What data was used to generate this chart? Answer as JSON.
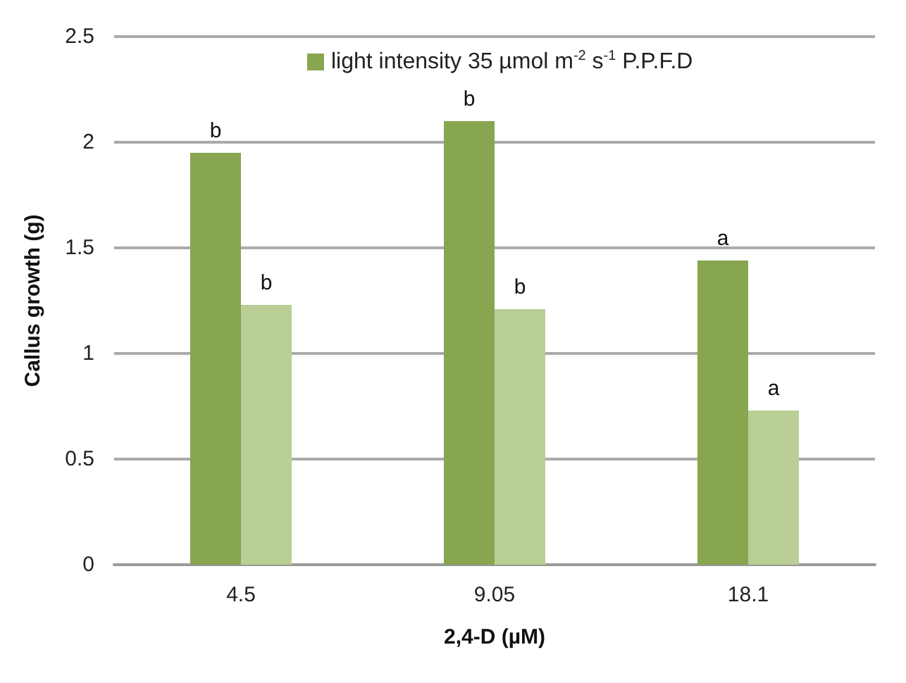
{
  "chart_data": {
    "type": "bar",
    "xlabel": "2,4-D (µM)",
    "ylabel": "Callus growth (g)",
    "categories": [
      "4.5",
      "9.05",
      "18.1"
    ],
    "series": [
      {
        "name": "light intensity 35 µmol m$^{-2}$ s$^{-1}$ P.P.F.D",
        "color": "#88a550",
        "values": [
          1.95,
          2.1,
          1.44
        ]
      },
      {
        "color": "#bacf96",
        "values": [
          1.23,
          1.21,
          0.73
        ]
      }
    ],
    "ylim": [
      0,
      2.5
    ],
    "yticks": [
      0,
      0.5,
      1,
      1.5,
      2,
      2.5
    ],
    "grid": "y",
    "legend": "top",
    "annotations": [
      {
        "text": "b",
        "x": "4.5",
        "y": 1.95
      },
      {
        "text": "b",
        "x": "4.5",
        "y": 1.23
      },
      {
        "text": "b",
        "x": "9.05",
        "y": 2.1
      },
      {
        "text": "b",
        "x": "9.05",
        "y": 1.21
      },
      {
        "text": "a",
        "x": "18.1",
        "y": 1.44
      },
      {
        "text": "a",
        "x": "18.1",
        "y": 0.73
      }
    ]
  }
}
